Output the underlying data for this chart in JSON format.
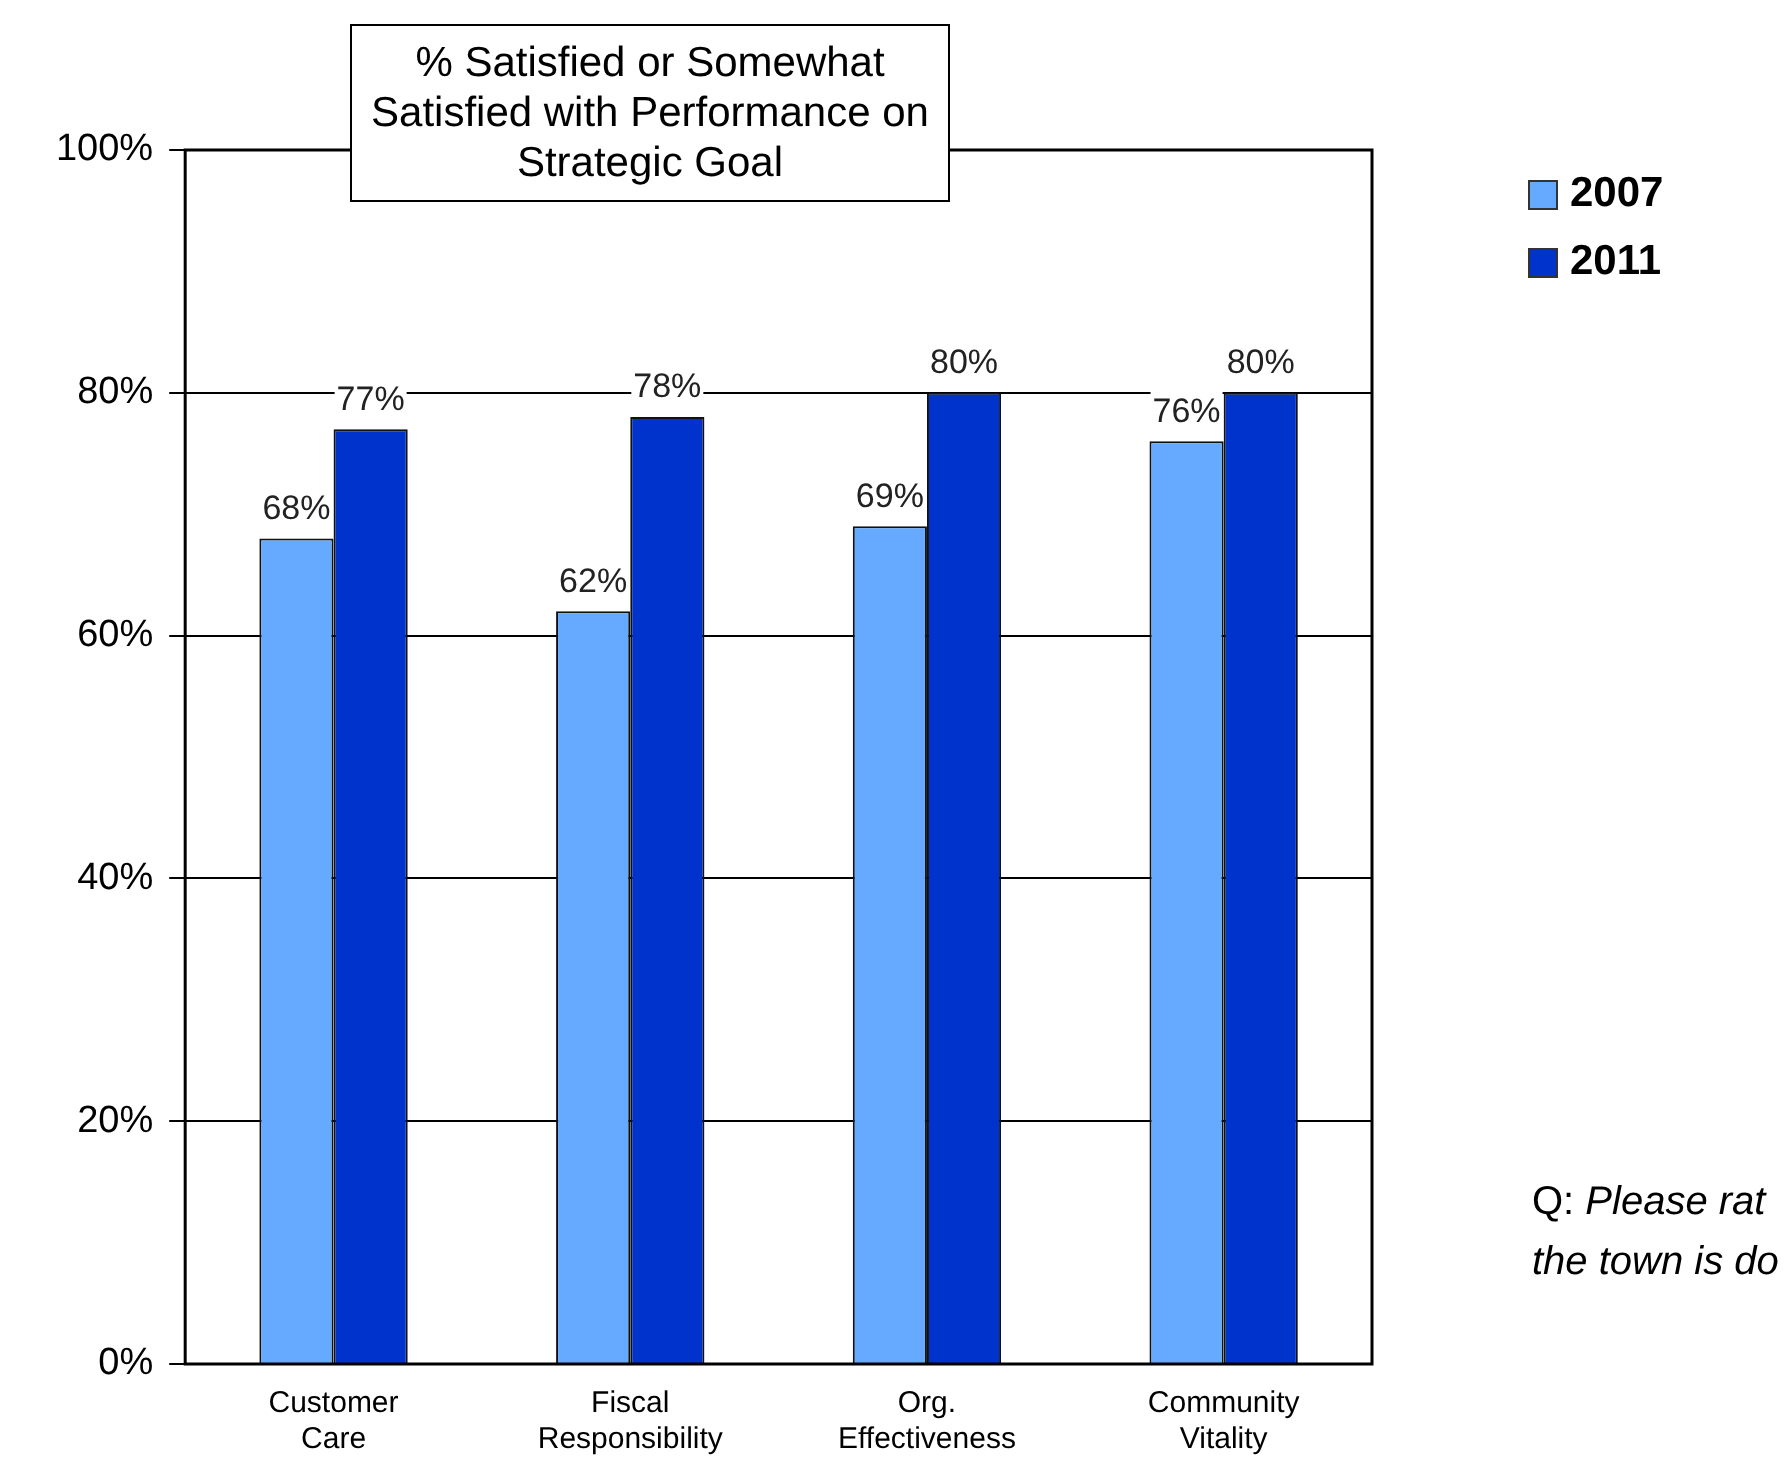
{
  "chart_data": {
    "type": "bar",
    "title": "% Satisfied or Somewhat Satisfied with Performance on Strategic Goal",
    "categories": [
      "Customer Care",
      "Fiscal Responsibility",
      "Org. Effectiveness",
      "Community Vitality"
    ],
    "series": [
      {
        "name": "2007",
        "color": "#66aaff",
        "values": [
          68,
          62,
          69,
          76
        ],
        "value_labels": [
          "68%",
          "62%",
          "69%",
          "76%"
        ]
      },
      {
        "name": "2011",
        "color": "#0033cc",
        "values": [
          77,
          78,
          80,
          80
        ],
        "value_labels": [
          "77%",
          "78%",
          "80%",
          "80%"
        ]
      }
    ],
    "ylim": [
      0,
      100
    ],
    "yticks": [
      {
        "value": 0,
        "label": "0%"
      },
      {
        "value": 20,
        "label": "20%"
      },
      {
        "value": 40,
        "label": "40%"
      },
      {
        "value": 60,
        "label": "60%"
      },
      {
        "value": 80,
        "label": "80%"
      },
      {
        "value": 100,
        "label": "100%"
      }
    ],
    "grid": "y",
    "legend": "top right",
    "annotations": [
      "Q: Please rat",
      "the town is do"
    ]
  }
}
